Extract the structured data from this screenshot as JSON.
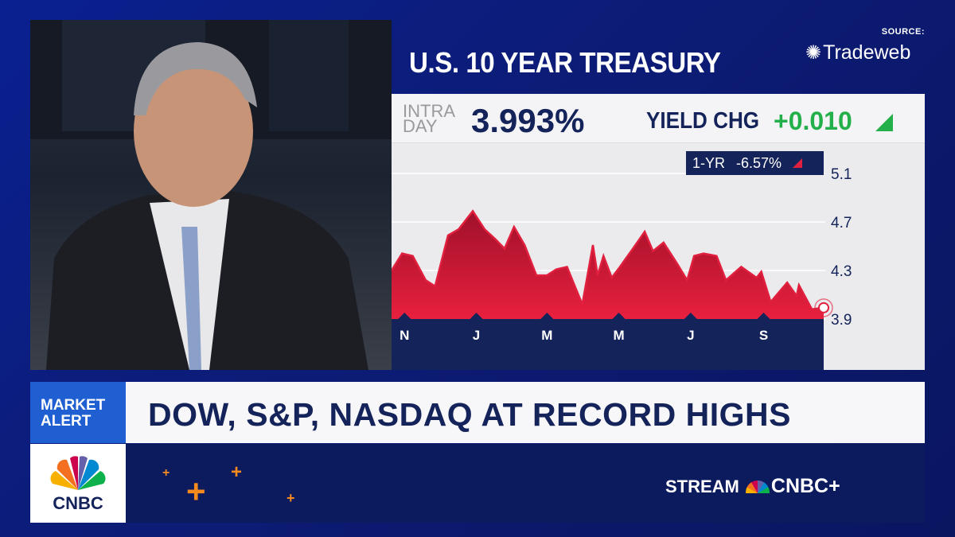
{
  "header": {
    "title": "U.S. 10 YEAR TREASURY",
    "source_label": "SOURCE:",
    "source_name": "Tradeweb"
  },
  "quote": {
    "intra_line1": "INTRA",
    "intra_line2": "DAY",
    "yield": "3.993%",
    "change_label": "YIELD CHG",
    "change_value": "+0.010",
    "change_direction": "up",
    "change_color": "#23b04a"
  },
  "one_year": {
    "label": "1-YR",
    "value": "-6.57%",
    "direction": "down",
    "color": "#e0203e"
  },
  "chart_data": {
    "type": "area",
    "title": "U.S. 10 YEAR TREASURY",
    "xlabel": "",
    "ylabel": "",
    "xlim": [
      "2023-10-21",
      "2024-10-22"
    ],
    "ylim": [
      3.9,
      5.1
    ],
    "yticks": [
      5.1,
      4.7,
      4.3,
      3.9
    ],
    "xticks": [
      {
        "date": "2023-11-01",
        "label": "N"
      },
      {
        "date": "2024-01-01",
        "label": "J"
      },
      {
        "date": "2024-03-01",
        "label": "M"
      },
      {
        "date": "2024-05-01",
        "label": "M"
      },
      {
        "date": "2024-07-01",
        "label": "J"
      },
      {
        "date": "2024-09-01",
        "label": "S"
      }
    ],
    "grid": true,
    "color": "#e0203e",
    "points": [
      [
        "2023-10-21",
        4.3
      ],
      [
        "2023-10-30",
        4.44
      ],
      [
        "2023-11-08",
        4.42
      ],
      [
        "2023-11-19",
        4.22
      ],
      [
        "2023-11-27",
        4.17
      ],
      [
        "2023-12-08",
        4.59
      ],
      [
        "2023-12-17",
        4.64
      ],
      [
        "2023-12-29",
        4.79
      ],
      [
        "2024-01-08",
        4.64
      ],
      [
        "2024-01-17",
        4.56
      ],
      [
        "2024-01-25",
        4.48
      ],
      [
        "2024-02-02",
        4.66
      ],
      [
        "2024-02-11",
        4.51
      ],
      [
        "2024-02-21",
        4.26
      ],
      [
        "2024-03-01",
        4.26
      ],
      [
        "2024-03-09",
        4.31
      ],
      [
        "2024-03-18",
        4.33
      ],
      [
        "2024-03-31",
        4.02
      ],
      [
        "2024-04-09",
        4.51
      ],
      [
        "2024-04-13",
        4.26
      ],
      [
        "2024-04-18",
        4.42
      ],
      [
        "2024-04-25",
        4.24
      ],
      [
        "2024-05-02",
        4.33
      ],
      [
        "2024-05-13",
        4.48
      ],
      [
        "2024-05-23",
        4.62
      ],
      [
        "2024-05-30",
        4.46
      ],
      [
        "2024-06-08",
        4.53
      ],
      [
        "2024-06-20",
        4.35
      ],
      [
        "2024-06-28",
        4.22
      ],
      [
        "2024-07-04",
        4.42
      ],
      [
        "2024-07-12",
        4.44
      ],
      [
        "2024-07-23",
        4.42
      ],
      [
        "2024-07-31",
        4.22
      ],
      [
        "2024-08-13",
        4.33
      ],
      [
        "2024-08-26",
        4.24
      ],
      [
        "2024-08-30",
        4.29
      ],
      [
        "2024-09-07",
        4.04
      ],
      [
        "2024-09-21",
        4.2
      ],
      [
        "2024-09-29",
        4.09
      ],
      [
        "2024-10-01",
        4.18
      ],
      [
        "2024-10-12",
        3.98
      ],
      [
        "2024-10-22",
        3.993
      ]
    ]
  },
  "alert": {
    "label_line1": "MARKET",
    "label_line2": "ALERT",
    "headline": "DOW, S&P, NASDAQ AT RECORD HIGHS"
  },
  "branding": {
    "network": "CNBC",
    "stream_label": "STREAM",
    "stream_brand": "CNBC+",
    "accent": "#f58a1f"
  }
}
